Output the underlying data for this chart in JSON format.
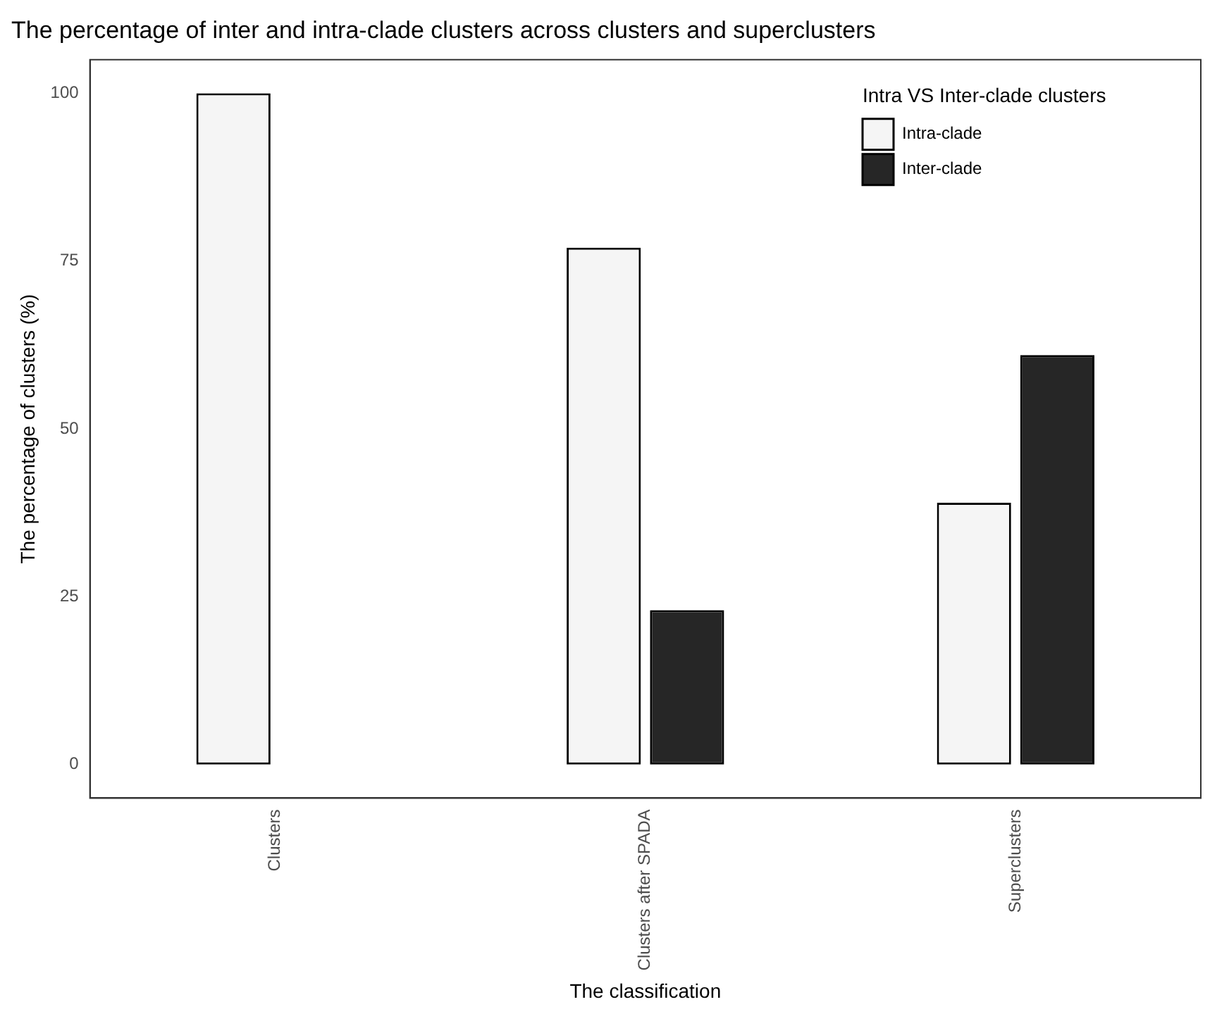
{
  "chart_data": {
    "type": "bar",
    "title": "The percentage of inter and intra-clade clusters across clusters and superclusters",
    "xlabel": "The classification",
    "ylabel": "The percentage of clusters (%)",
    "legend_title": "Intra VS Inter-clade clusters",
    "categories": [
      "Clusters",
      "Clusters after SPADA",
      "Superclusters"
    ],
    "series": [
      {
        "name": "Intra-clade",
        "color": "#f5f5f5",
        "values": [
          100,
          77,
          39
        ]
      },
      {
        "name": "Inter-clade",
        "color": "#262626",
        "values": [
          0,
          23,
          61
        ]
      }
    ],
    "ylim": [
      -5,
      105
    ],
    "yticks": [
      0,
      25,
      50,
      75,
      100
    ],
    "grid": false,
    "legend": "top right"
  }
}
